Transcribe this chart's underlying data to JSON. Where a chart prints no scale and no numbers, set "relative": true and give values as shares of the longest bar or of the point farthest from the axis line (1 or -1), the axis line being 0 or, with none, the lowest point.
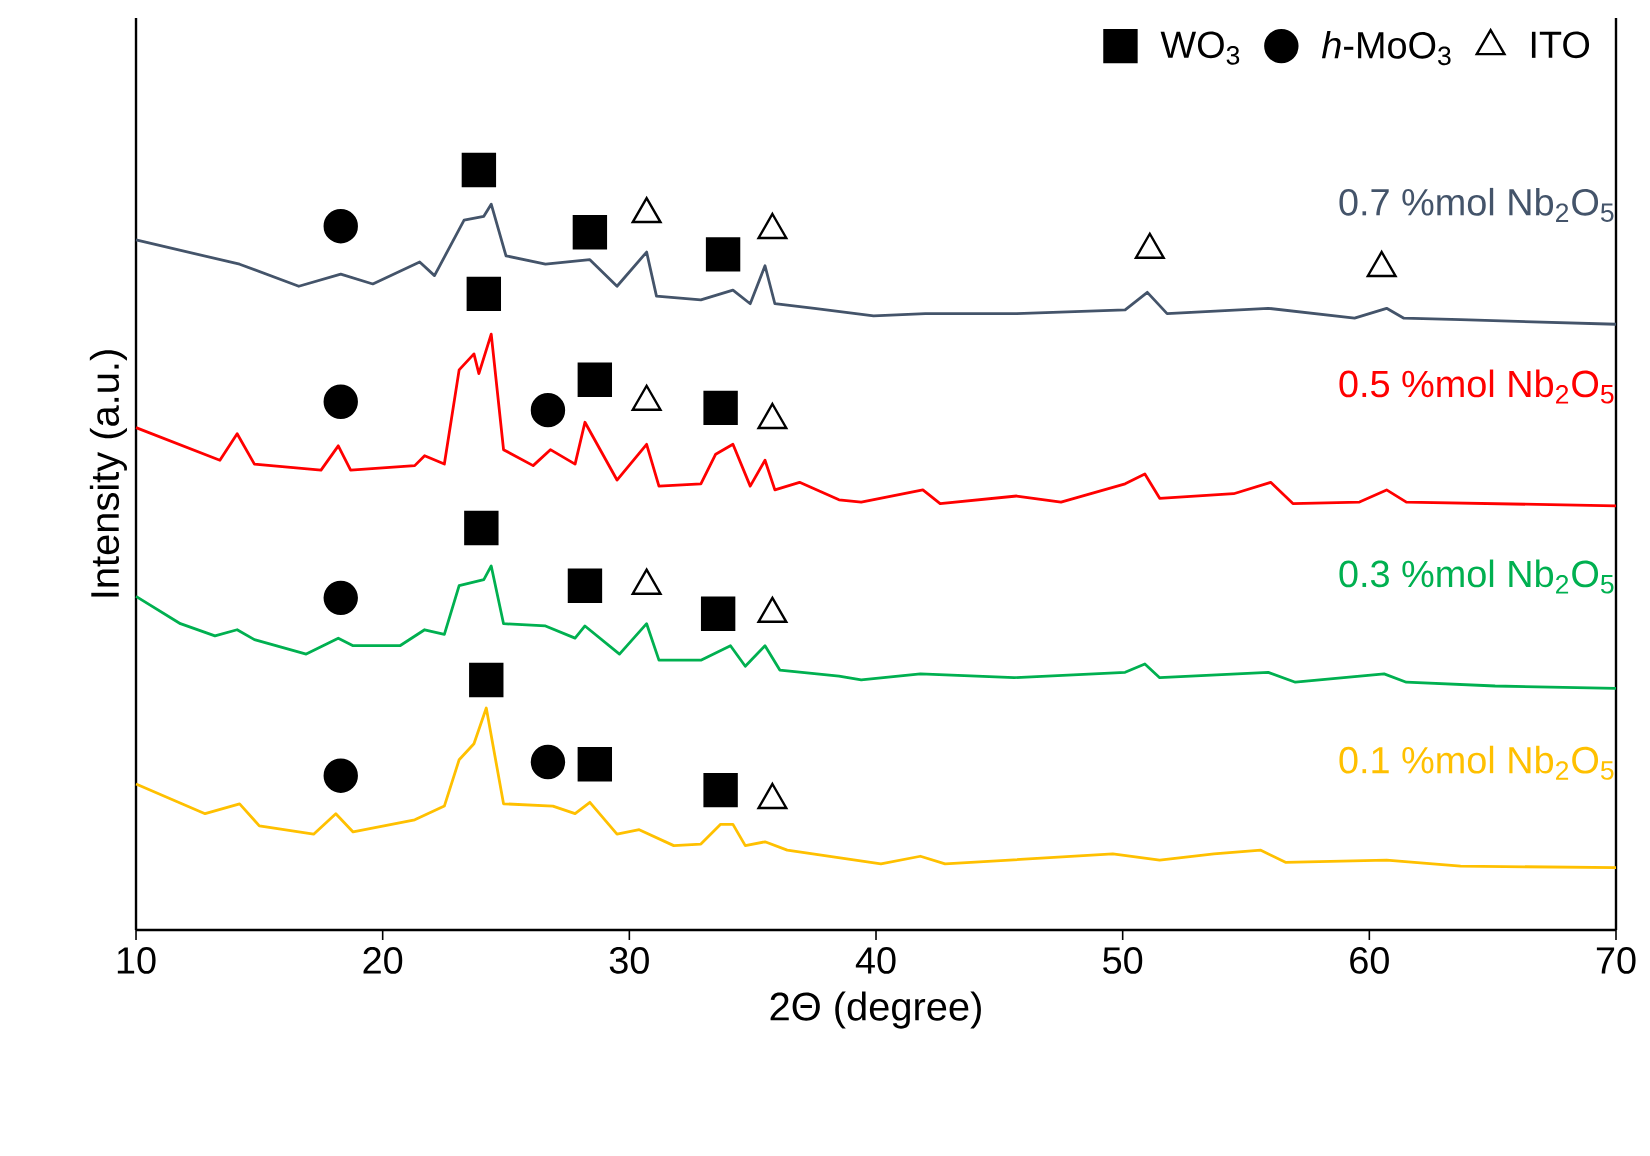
{
  "chart_data": {
    "type": "line",
    "relative": true,
    "xlabel": "2Θ (degree)",
    "ylabel": "Intensity (a.u.)",
    "xlim": [
      10,
      70
    ],
    "xticks": [
      10,
      20,
      30,
      40,
      50,
      60,
      70
    ],
    "grid": false,
    "legend": "top right",
    "marker": "none",
    "line_style": "solid",
    "series": [
      {
        "name": "0.7 %mol Nb$_{2}$O$_{5}$",
        "color": "#44546a",
        "x": [
          10,
          14.2,
          16.6,
          18.3,
          19.6,
          21.5,
          22.1,
          23.3,
          24.1,
          24.4,
          25.0,
          26.6,
          28.4,
          29.5,
          30.7,
          31.1,
          32.9,
          34.2,
          34.9,
          35.5,
          35.9,
          37.5,
          39.9,
          42.0,
          45.7,
          50.1,
          51.0,
          51.8,
          55.9,
          59.4,
          60.7,
          61.4,
          63.7,
          70
        ],
        "values": [
          0.908,
          0.876,
          0.847,
          0.863,
          0.85,
          0.879,
          0.861,
          0.934,
          0.939,
          0.955,
          0.887,
          0.876,
          0.882,
          0.847,
          0.892,
          0.834,
          0.829,
          0.842,
          0.824,
          0.874,
          0.824,
          0.818,
          0.808,
          0.811,
          0.811,
          0.816,
          0.839,
          0.811,
          0.818,
          0.805,
          0.818,
          0.805,
          0.803,
          0.797
        ]
      },
      {
        "name": "0.5 %mol Nb$_{2}$O$_{5}$",
        "color": "#ff0000",
        "x": [
          10,
          13.4,
          14.1,
          14.8,
          17.5,
          18.2,
          18.7,
          21.3,
          21.7,
          22.5,
          23.1,
          23.7,
          23.9,
          24.4,
          24.9,
          26.1,
          26.8,
          27.8,
          28.2,
          29.5,
          30.7,
          31.2,
          32.9,
          33.5,
          34.2,
          34.9,
          35.5,
          35.9,
          36.9,
          38.5,
          39.4,
          41.9,
          42.6,
          45.7,
          47.5,
          50.1,
          50.9,
          51.5,
          54.5,
          56.0,
          56.9,
          59.6,
          60.7,
          61.5,
          70
        ],
        "values": [
          0.661,
          0.618,
          0.653,
          0.613,
          0.605,
          0.637,
          0.605,
          0.611,
          0.624,
          0.613,
          0.737,
          0.758,
          0.732,
          0.784,
          0.632,
          0.611,
          0.632,
          0.613,
          0.668,
          0.592,
          0.639,
          0.584,
          0.587,
          0.626,
          0.639,
          0.584,
          0.618,
          0.579,
          0.589,
          0.566,
          0.563,
          0.579,
          0.561,
          0.571,
          0.563,
          0.587,
          0.6,
          0.568,
          0.574,
          0.589,
          0.561,
          0.563,
          0.579,
          0.563,
          0.558
        ]
      },
      {
        "name": "0.3 %mol Nb$_{2}$O$_{5}$",
        "color": "#00b050",
        "x": [
          10,
          11.8,
          13.2,
          14.1,
          14.8,
          16.9,
          18.2,
          18.8,
          20.7,
          21.7,
          22.5,
          23.1,
          24.1,
          24.4,
          24.9,
          26.6,
          27.8,
          28.2,
          29.6,
          30.7,
          31.2,
          32.9,
          34.1,
          34.7,
          35.5,
          36.1,
          38.5,
          39.4,
          41.8,
          45.6,
          50.1,
          50.9,
          51.5,
          55.9,
          57.0,
          60.6,
          61.5,
          65.1,
          70
        ],
        "values": [
          0.439,
          0.403,
          0.387,
          0.395,
          0.382,
          0.363,
          0.384,
          0.374,
          0.374,
          0.395,
          0.389,
          0.453,
          0.461,
          0.479,
          0.403,
          0.4,
          0.384,
          0.4,
          0.363,
          0.403,
          0.355,
          0.355,
          0.374,
          0.347,
          0.374,
          0.342,
          0.334,
          0.329,
          0.337,
          0.332,
          0.339,
          0.35,
          0.332,
          0.339,
          0.326,
          0.337,
          0.326,
          0.321,
          0.318
        ]
      },
      {
        "name": "0.1 %mol Nb$_{2}$O$_{5}$",
        "color": "#ffc000",
        "x": [
          10,
          12.8,
          14.2,
          15.0,
          17.2,
          18.1,
          18.8,
          21.3,
          22.5,
          23.1,
          23.7,
          24.2,
          24.9,
          26.9,
          27.8,
          28.4,
          29.5,
          30.4,
          31.8,
          32.9,
          33.7,
          34.2,
          34.7,
          35.5,
          36.4,
          40.2,
          41.8,
          42.8,
          49.6,
          51.5,
          53.7,
          55.6,
          56.6,
          60.7,
          63.7,
          70
        ],
        "values": [
          0.192,
          0.153,
          0.166,
          0.137,
          0.126,
          0.153,
          0.129,
          0.145,
          0.163,
          0.224,
          0.245,
          0.292,
          0.166,
          0.163,
          0.153,
          0.168,
          0.126,
          0.132,
          0.111,
          0.113,
          0.139,
          0.139,
          0.111,
          0.116,
          0.105,
          0.087,
          0.097,
          0.087,
          0.1,
          0.092,
          0.1,
          0.105,
          0.089,
          0.092,
          0.084,
          0.082
        ]
      },
      {
        "name": "WO$_{3}$",
        "type": "scatter",
        "marker": "square",
        "color": "#000000",
        "x": [
          23.9,
          24.1,
          28.4,
          33.8,
          28.6,
          33.7,
          24.0,
          28.2,
          33.6,
          24.2,
          28.6,
          33.7
        ],
        "values": [
          1.0,
          0.837,
          0.918,
          0.889,
          0.724,
          0.687,
          0.529,
          0.453,
          0.416,
          0.329,
          0.218,
          0.184
        ]
      },
      {
        "name": "*h*-MoO$_{3}$",
        "type": "scatter",
        "marker": "circle",
        "color": "#000000",
        "x": [
          18.3,
          18.3,
          26.7,
          18.3,
          18.3,
          26.7
        ],
        "values": [
          0.926,
          0.695,
          0.684,
          0.437,
          0.203,
          0.221
        ]
      },
      {
        "name": "ITO",
        "type": "scatter",
        "marker": "triangle",
        "color": "#000000",
        "x": [
          30.7,
          35.8,
          51.1,
          60.5,
          30.7,
          35.8,
          30.7,
          35.8,
          35.8
        ],
        "values": [
          0.942,
          0.921,
          0.895,
          0.871,
          0.695,
          0.671,
          0.453,
          0.416,
          0.171
        ]
      }
    ]
  }
}
